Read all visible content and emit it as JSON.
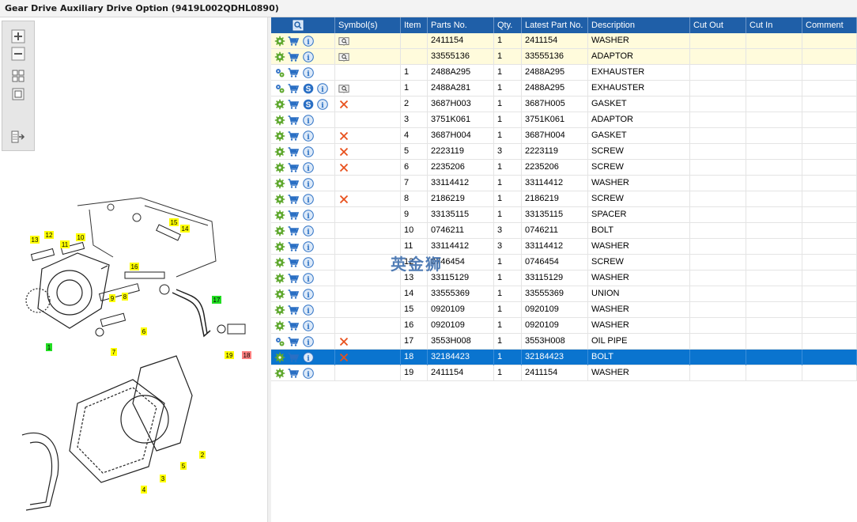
{
  "window": {
    "title": "Gear Drive Auxiliary Drive Option (9419L002QDHL0890)"
  },
  "toolbox": {
    "buttons": [
      "zoom-in-icon",
      "zoom-out-icon",
      "fit-all-icon",
      "actual-size-icon",
      "export-list-icon"
    ]
  },
  "diagram": {
    "callouts": [
      {
        "label": "13",
        "color": "#ffff00"
      },
      {
        "label": "12",
        "color": "#ffff00"
      },
      {
        "label": "11",
        "color": "#ffff00"
      },
      {
        "label": "10",
        "color": "#ffff00"
      },
      {
        "label": "15",
        "color": "#ffff00"
      },
      {
        "label": "14",
        "color": "#ffff00"
      },
      {
        "label": "16",
        "color": "#ffff00"
      },
      {
        "label": "9",
        "color": "#ffff00"
      },
      {
        "label": "8",
        "color": "#ffff00"
      },
      {
        "label": "17",
        "color": "#22dd22"
      },
      {
        "label": "6",
        "color": "#ffff00"
      },
      {
        "label": "7",
        "color": "#ffff00"
      },
      {
        "label": "1",
        "color": "#22dd22"
      },
      {
        "label": "19",
        "color": "#ffff00"
      },
      {
        "label": "18",
        "color": "#ff8080"
      },
      {
        "label": "2",
        "color": "#ffff00"
      },
      {
        "label": "5",
        "color": "#ffff00"
      },
      {
        "label": "3",
        "color": "#ffff00"
      },
      {
        "label": "4",
        "color": "#ffff00"
      }
    ]
  },
  "grid": {
    "columns": [
      "",
      "Symbol(s)",
      "Item",
      "Parts No.",
      "Qty.",
      "Latest Part No.",
      "Description",
      "Cut Out",
      "Cut In",
      "Comment"
    ],
    "header_icon": "search-list-icon",
    "rows": [
      {
        "icon": "gear",
        "s": false,
        "symbol": "book",
        "item": "",
        "part": "2411154",
        "qty": "1",
        "latest": "2411154",
        "desc": "WASHER",
        "tint": true,
        "sel": false
      },
      {
        "icon": "gear",
        "s": false,
        "symbol": "book",
        "item": "",
        "part": "33555136",
        "qty": "1",
        "latest": "33555136",
        "desc": "ADAPTOR",
        "tint": true,
        "sel": false
      },
      {
        "icon": "gears",
        "s": false,
        "symbol": "",
        "item": "1",
        "part": "2488A295",
        "qty": "1",
        "latest": "2488A295",
        "desc": "EXHAUSTER",
        "tint": false,
        "sel": false
      },
      {
        "icon": "gears",
        "s": true,
        "symbol": "book",
        "item": "1",
        "part": "2488A281",
        "qty": "1",
        "latest": "2488A295",
        "desc": "EXHAUSTER",
        "tint": false,
        "sel": false
      },
      {
        "icon": "gear",
        "s": true,
        "symbol": "x",
        "item": "2",
        "part": "3687H003",
        "qty": "1",
        "latest": "3687H005",
        "desc": "GASKET",
        "tint": false,
        "sel": false
      },
      {
        "icon": "gear",
        "s": false,
        "symbol": "",
        "item": "3",
        "part": "3751K061",
        "qty": "1",
        "latest": "3751K061",
        "desc": "ADAPTOR",
        "tint": false,
        "sel": false
      },
      {
        "icon": "gear",
        "s": false,
        "symbol": "x",
        "item": "4",
        "part": "3687H004",
        "qty": "1",
        "latest": "3687H004",
        "desc": "GASKET",
        "tint": false,
        "sel": false
      },
      {
        "icon": "gear",
        "s": false,
        "symbol": "x",
        "item": "5",
        "part": "2223119",
        "qty": "3",
        "latest": "2223119",
        "desc": "SCREW",
        "tint": false,
        "sel": false
      },
      {
        "icon": "gear",
        "s": false,
        "symbol": "x",
        "item": "6",
        "part": "2235206",
        "qty": "1",
        "latest": "2235206",
        "desc": "SCREW",
        "tint": false,
        "sel": false
      },
      {
        "icon": "gear",
        "s": false,
        "symbol": "",
        "item": "7",
        "part": "33114412",
        "qty": "1",
        "latest": "33114412",
        "desc": "WASHER",
        "tint": false,
        "sel": false
      },
      {
        "icon": "gear",
        "s": false,
        "symbol": "x",
        "item": "8",
        "part": "2186219",
        "qty": "1",
        "latest": "2186219",
        "desc": "SCREW",
        "tint": false,
        "sel": false
      },
      {
        "icon": "gear",
        "s": false,
        "symbol": "",
        "item": "9",
        "part": "33135115",
        "qty": "1",
        "latest": "33135115",
        "desc": "SPACER",
        "tint": false,
        "sel": false
      },
      {
        "icon": "gear",
        "s": false,
        "symbol": "",
        "item": "10",
        "part": "0746211",
        "qty": "3",
        "latest": "0746211",
        "desc": "BOLT",
        "tint": false,
        "sel": false
      },
      {
        "icon": "gear",
        "s": false,
        "symbol": "",
        "item": "11",
        "part": "33114412",
        "qty": "3",
        "latest": "33114412",
        "desc": "WASHER",
        "tint": false,
        "sel": false
      },
      {
        "icon": "gear",
        "s": false,
        "symbol": "",
        "item": "12",
        "part": "0746454",
        "qty": "1",
        "latest": "0746454",
        "desc": "SCREW",
        "tint": false,
        "sel": false
      },
      {
        "icon": "gear",
        "s": false,
        "symbol": "",
        "item": "13",
        "part": "33115129",
        "qty": "1",
        "latest": "33115129",
        "desc": "WASHER",
        "tint": false,
        "sel": false
      },
      {
        "icon": "gear",
        "s": false,
        "symbol": "",
        "item": "14",
        "part": "33555369",
        "qty": "1",
        "latest": "33555369",
        "desc": "UNION",
        "tint": false,
        "sel": false
      },
      {
        "icon": "gear",
        "s": false,
        "symbol": "",
        "item": "15",
        "part": "0920109",
        "qty": "1",
        "latest": "0920109",
        "desc": "WASHER",
        "tint": false,
        "sel": false
      },
      {
        "icon": "gear",
        "s": false,
        "symbol": "",
        "item": "16",
        "part": "0920109",
        "qty": "1",
        "latest": "0920109",
        "desc": "WASHER",
        "tint": false,
        "sel": false
      },
      {
        "icon": "gears",
        "s": false,
        "symbol": "x",
        "item": "17",
        "part": "3553H008",
        "qty": "1",
        "latest": "3553H008",
        "desc": "OIL PIPE",
        "tint": false,
        "sel": false
      },
      {
        "icon": "gear",
        "s": false,
        "symbol": "x",
        "item": "18",
        "part": "32184423",
        "qty": "1",
        "latest": "32184423",
        "desc": "BOLT",
        "tint": false,
        "sel": true
      },
      {
        "icon": "gear",
        "s": false,
        "symbol": "",
        "item": "19",
        "part": "2411154",
        "qty": "1",
        "latest": "2411154",
        "desc": "WASHER",
        "tint": false,
        "sel": false
      }
    ]
  },
  "watermark": {
    "text": "英金狮"
  },
  "colors": {
    "header_blue": "#1f5fa8",
    "selected_row": "#0a74cf",
    "tint_row": "#fffbdc",
    "gear_green": "#5fa82e",
    "cart_blue": "#2a6fc4",
    "x_orange": "#e8501c"
  }
}
